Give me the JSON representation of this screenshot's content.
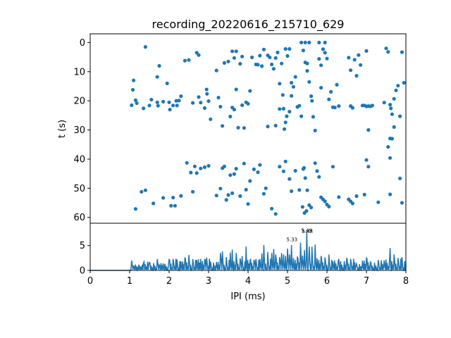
{
  "chart_data": [
    {
      "type": "scatter",
      "title": "recording_20220616_215710_629",
      "xlabel": "",
      "ylabel": "t (s)",
      "xlim": [
        0,
        8
      ],
      "ylim": [
        62,
        -3
      ],
      "yticks": [
        "0",
        "10",
        "20",
        "30",
        "40",
        "50",
        "60"
      ],
      "ytick_values": [
        0,
        10,
        20,
        30,
        40,
        50,
        60
      ],
      "grid": false,
      "color": "#1f77b4",
      "points": [
        [
          1.05,
          21.5
        ],
        [
          1.1,
          13
        ],
        [
          1.08,
          16.2
        ],
        [
          1.15,
          19.8
        ],
        [
          1.18,
          20.8
        ],
        [
          1.35,
          22.6
        ],
        [
          1.4,
          1.5
        ],
        [
          1.5,
          21.6
        ],
        [
          1.55,
          19.6
        ],
        [
          1.7,
          11.8
        ],
        [
          1.72,
          21.7
        ],
        [
          1.75,
          8
        ],
        [
          1.7,
          20.5
        ],
        [
          1.85,
          20.3
        ],
        [
          1.95,
          14
        ],
        [
          2.0,
          20.5
        ],
        [
          2.02,
          23
        ],
        [
          2.1,
          21.6
        ],
        [
          2.18,
          20
        ],
        [
          2.2,
          21.6
        ],
        [
          2.25,
          19.9
        ],
        [
          2.3,
          18.4
        ],
        [
          2.4,
          6.2
        ],
        [
          2.5,
          6
        ],
        [
          2.6,
          20.7
        ],
        [
          2.7,
          3.5
        ],
        [
          2.75,
          4.3
        ],
        [
          2.8,
          20.6
        ],
        [
          2.75,
          18.7
        ],
        [
          2.9,
          22.5
        ],
        [
          2.95,
          16.1
        ],
        [
          2.96,
          17.6
        ],
        [
          3.0,
          20.1
        ],
        [
          3.05,
          26.3
        ],
        [
          3.2,
          9.6
        ],
        [
          3.25,
          18.9
        ],
        [
          3.3,
          22
        ],
        [
          3.35,
          28.6
        ],
        [
          3.4,
          7
        ],
        [
          3.5,
          6.5
        ],
        [
          3.55,
          25.4
        ],
        [
          3.6,
          22.3
        ],
        [
          3.65,
          23
        ],
        [
          3.7,
          16.1
        ],
        [
          3.75,
          29.2
        ],
        [
          3.6,
          3
        ],
        [
          3.65,
          5.3
        ],
        [
          3.7,
          3
        ],
        [
          3.8,
          7.3
        ],
        [
          3.85,
          4.8
        ],
        [
          3.9,
          29.3
        ],
        [
          3.85,
          21.5
        ],
        [
          3.95,
          20.5
        ],
        [
          4.0,
          21
        ],
        [
          4.05,
          16.6
        ],
        [
          4.1,
          5.1
        ],
        [
          4.2,
          7.5
        ],
        [
          4.25,
          7.6
        ],
        [
          4.3,
          4.5
        ],
        [
          4.35,
          8.1
        ],
        [
          4.4,
          2.4
        ],
        [
          4.5,
          4.4
        ],
        [
          4.55,
          5.1
        ],
        [
          4.6,
          7.5
        ],
        [
          4.65,
          9
        ],
        [
          4.7,
          5.3
        ],
        [
          4.75,
          3.4
        ],
        [
          4.8,
          14.1
        ],
        [
          4.85,
          7.2
        ],
        [
          4.9,
          22.7
        ],
        [
          4.95,
          2.2
        ],
        [
          5.0,
          4.6
        ],
        [
          4.5,
          28.8
        ],
        [
          4.7,
          28.5
        ],
        [
          4.8,
          22.8
        ],
        [
          4.88,
          18
        ],
        [
          4.92,
          29.7
        ],
        [
          4.95,
          27.4
        ],
        [
          4.98,
          25.3
        ],
        [
          5.05,
          23.7
        ],
        [
          5.1,
          18.3
        ],
        [
          5.05,
          2.2
        ],
        [
          5.1,
          13.8
        ],
        [
          5.15,
          15.2
        ],
        [
          5.2,
          11.8
        ],
        [
          5.25,
          22.1
        ],
        [
          5.3,
          21.7
        ],
        [
          5.35,
          25.3
        ],
        [
          5.4,
          2.7
        ],
        [
          5.45,
          6.8
        ],
        [
          5.5,
          7.2
        ],
        [
          5.55,
          13.5
        ],
        [
          5.6,
          18.4
        ],
        [
          5.62,
          20
        ],
        [
          5.65,
          25.5
        ],
        [
          5.7,
          30.2
        ],
        [
          5.8,
          5.6
        ],
        [
          5.85,
          7.8
        ],
        [
          5.9,
          2.3
        ],
        [
          5.95,
          3.5
        ],
        [
          6.0,
          5.5
        ],
        [
          6.05,
          19.5
        ],
        [
          6.1,
          16.9
        ],
        [
          6.15,
          22.2
        ],
        [
          6.2,
          22.3
        ],
        [
          6.25,
          14.5
        ],
        [
          6.3,
          21.8
        ],
        [
          6.55,
          5.2
        ],
        [
          6.6,
          21.8
        ],
        [
          6.65,
          22.4
        ],
        [
          6.7,
          5.9
        ],
        [
          6.75,
          11.4
        ],
        [
          6.8,
          4.3
        ],
        [
          6.85,
          7.7
        ],
        [
          6.9,
          21.6
        ],
        [
          6.95,
          21.6
        ],
        [
          7.0,
          21.9
        ],
        [
          7.05,
          21.8
        ],
        [
          7.1,
          21.9
        ],
        [
          7.15,
          21.6
        ],
        [
          7.0,
          2.9
        ],
        [
          7.05,
          30
        ],
        [
          7.45,
          20.6
        ],
        [
          7.5,
          2
        ],
        [
          7.55,
          3.2
        ],
        [
          7.6,
          21.3
        ],
        [
          7.62,
          22.6
        ],
        [
          7.65,
          24.6
        ],
        [
          7.7,
          19.3
        ],
        [
          7.75,
          16.4
        ],
        [
          7.8,
          14.8
        ],
        [
          7.85,
          25.3
        ],
        [
          7.9,
          3.3
        ],
        [
          7.95,
          13.8
        ],
        [
          7.7,
          29
        ],
        [
          7.6,
          32.9
        ],
        [
          7.65,
          33
        ],
        [
          7.55,
          35.8
        ],
        [
          7.6,
          39.6
        ],
        [
          5.85,
          15.5
        ],
        [
          6.6,
          9.5
        ],
        [
          5.5,
          9.7
        ],
        [
          5.35,
          0
        ],
        [
          5.45,
          0
        ],
        [
          5.55,
          0
        ],
        [
          5.8,
          0
        ],
        [
          5.95,
          0
        ],
        [
          2.45,
          41.3
        ],
        [
          2.55,
          44.6
        ],
        [
          2.65,
          42.5
        ],
        [
          2.7,
          44.8
        ],
        [
          2.8,
          43.2
        ],
        [
          2.9,
          42.8
        ],
        [
          3.0,
          42.3
        ],
        [
          3.2,
          52.5
        ],
        [
          3.3,
          50.1
        ],
        [
          3.35,
          43.1
        ],
        [
          3.4,
          42.5
        ],
        [
          3.45,
          54
        ],
        [
          3.5,
          52.3
        ],
        [
          3.6,
          51.7
        ],
        [
          3.55,
          45.5
        ],
        [
          3.65,
          45.1
        ],
        [
          3.7,
          43.3
        ],
        [
          3.8,
          52.7
        ],
        [
          3.9,
          41.5
        ],
        [
          3.95,
          50.5
        ],
        [
          4.0,
          55.4
        ],
        [
          4.05,
          47.5
        ],
        [
          4.15,
          43.5
        ],
        [
          4.25,
          44.5
        ],
        [
          4.3,
          42
        ],
        [
          4.4,
          51.9
        ],
        [
          4.45,
          50
        ],
        [
          4.6,
          57
        ],
        [
          4.7,
          58.8
        ],
        [
          4.8,
          42.6
        ],
        [
          4.9,
          44.2
        ],
        [
          4.95,
          40.8
        ],
        [
          5.05,
          46.8
        ],
        [
          5.1,
          51
        ],
        [
          5.2,
          44
        ],
        [
          5.3,
          50.6
        ],
        [
          5.4,
          43.4
        ],
        [
          5.45,
          46.5
        ],
        [
          5.5,
          50.7
        ],
        [
          5.55,
          55.8
        ],
        [
          5.6,
          56.6
        ],
        [
          5.7,
          41.4
        ],
        [
          5.75,
          44.1
        ],
        [
          5.8,
          46.1
        ],
        [
          5.85,
          53.1
        ],
        [
          5.9,
          53.8
        ],
        [
          5.95,
          54.5
        ],
        [
          6.0,
          55.6
        ],
        [
          6.05,
          56.3
        ],
        [
          6.15,
          42.6
        ],
        [
          6.3,
          53
        ],
        [
          6.55,
          53.8
        ],
        [
          6.6,
          54.5
        ],
        [
          6.65,
          55.2
        ],
        [
          6.75,
          52.7
        ],
        [
          6.95,
          52.2
        ],
        [
          7.0,
          40.3
        ],
        [
          7.05,
          42.6
        ],
        [
          7.3,
          54.8
        ],
        [
          7.6,
          52.1
        ],
        [
          7.85,
          46.6
        ],
        [
          7.9,
          55
        ],
        [
          5.42,
          43
        ],
        [
          1.15,
          57.1
        ],
        [
          1.3,
          51.2
        ],
        [
          1.4,
          50.7
        ],
        [
          1.6,
          55.2
        ],
        [
          1.85,
          53.3
        ],
        [
          2.05,
          56
        ],
        [
          2.1,
          53.2
        ],
        [
          2.15,
          56
        ],
        [
          2.3,
          52.6
        ],
        [
          2.6,
          51.2
        ],
        [
          5.38,
          56.4
        ],
        [
          5.43,
          58.5
        ],
        [
          5.48,
          57.8
        ]
      ]
    },
    {
      "type": "line",
      "title": "",
      "xlabel": "IPI (ms)",
      "ylabel": "",
      "xlim": [
        0,
        8
      ],
      "ylim": [
        0,
        9.5
      ],
      "xticks": [
        "0",
        "1",
        "2",
        "3",
        "4",
        "5",
        "6",
        "7",
        "8"
      ],
      "xtick_values": [
        0,
        1,
        2,
        3,
        4,
        5,
        6,
        7,
        8
      ],
      "yticks": [
        "0",
        "5"
      ],
      "ytick_values": [
        0,
        5
      ],
      "grid": false,
      "color": "#1f77b4",
      "annotations": [
        {
          "text": "5.49",
          "x": 5.49,
          "y": 8.0
        },
        {
          "text": "5.48",
          "x": 5.48,
          "y": 7.9
        },
        {
          "text": "5.33",
          "x": 5.33,
          "y": 6.2
        }
      ],
      "peaks": [
        [
          1.05,
          2
        ],
        [
          1.1,
          1
        ],
        [
          1.35,
          1.5
        ],
        [
          1.5,
          1.6
        ],
        [
          1.7,
          2.3
        ],
        [
          1.75,
          1.2
        ],
        [
          1.85,
          1.4
        ],
        [
          2.0,
          2.2
        ],
        [
          2.1,
          2.3
        ],
        [
          2.2,
          2.2
        ],
        [
          2.3,
          1.8
        ],
        [
          2.4,
          2.5
        ],
        [
          2.5,
          3.1
        ],
        [
          2.6,
          2.3
        ],
        [
          2.7,
          2.1
        ],
        [
          2.8,
          2.3
        ],
        [
          2.9,
          2.2
        ],
        [
          2.95,
          2.6
        ],
        [
          3.05,
          1.8
        ],
        [
          3.2,
          1.7
        ],
        [
          3.3,
          3.5
        ],
        [
          3.35,
          3.8
        ],
        [
          3.45,
          2.7
        ],
        [
          3.55,
          3.6
        ],
        [
          3.6,
          4.2
        ],
        [
          3.7,
          3.5
        ],
        [
          3.8,
          2.4
        ],
        [
          3.85,
          2.9
        ],
        [
          3.95,
          4.8
        ],
        [
          4.05,
          2
        ],
        [
          4.15,
          2.1
        ],
        [
          4.2,
          2.3
        ],
        [
          4.3,
          2.3
        ],
        [
          4.35,
          3.4
        ],
        [
          4.4,
          5.1
        ],
        [
          4.5,
          3.7
        ],
        [
          4.6,
          3.5
        ],
        [
          4.65,
          4.3
        ],
        [
          4.7,
          3.2
        ],
        [
          4.8,
          2.7
        ],
        [
          4.85,
          3.5
        ],
        [
          4.9,
          3.2
        ],
        [
          4.95,
          2.9
        ],
        [
          5.0,
          4.4
        ],
        [
          5.05,
          3.2
        ],
        [
          5.1,
          5.1
        ],
        [
          5.15,
          2.5
        ],
        [
          5.25,
          2.8
        ],
        [
          5.33,
          5.6
        ],
        [
          5.38,
          3
        ],
        [
          5.43,
          4.1
        ],
        [
          5.49,
          8.0
        ],
        [
          5.55,
          4.8
        ],
        [
          5.62,
          4.8
        ],
        [
          5.7,
          5.2
        ],
        [
          5.75,
          2.4
        ],
        [
          5.85,
          2.9
        ],
        [
          5.95,
          2.6
        ],
        [
          6.05,
          3.2
        ],
        [
          6.15,
          1.8
        ],
        [
          6.3,
          2.3
        ],
        [
          6.5,
          2.5
        ],
        [
          6.6,
          2.3
        ],
        [
          6.75,
          1.3
        ],
        [
          6.9,
          2
        ],
        [
          7.0,
          2.5
        ],
        [
          7.1,
          1.7
        ],
        [
          7.3,
          2.1
        ],
        [
          7.45,
          2
        ],
        [
          7.6,
          4.5
        ],
        [
          7.7,
          3.2
        ],
        [
          7.8,
          2.5
        ],
        [
          7.9,
          2.7
        ]
      ]
    }
  ]
}
